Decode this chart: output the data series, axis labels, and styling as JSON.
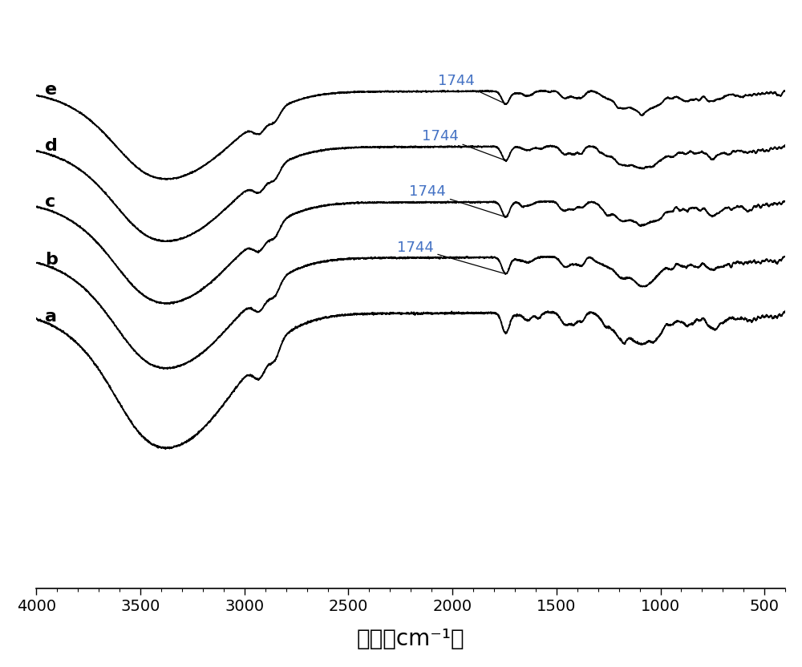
{
  "xmin": 4000,
  "xmax": 400,
  "labels": [
    "a",
    "b",
    "c",
    "d",
    "e"
  ],
  "offsets": [
    0.0,
    1.5,
    3.0,
    4.5,
    6.0
  ],
  "annotation_wavenumber": 1744,
  "annotation_color": "#4472C4",
  "xlabel": "波数（cm⁻¹）",
  "xlabel_fontsize": 20,
  "tick_fontsize": 14,
  "label_fontsize": 16,
  "annot_fontsize": 13,
  "line_color": "#000000",
  "line_width": 1.3,
  "background_color": "#ffffff",
  "figsize": [
    10.0,
    8.32
  ],
  "xticks": [
    4000,
    3500,
    3000,
    2500,
    2000,
    1500,
    1000,
    500
  ],
  "ylim_bottom": -7.5,
  "ylim_top": 8.0
}
